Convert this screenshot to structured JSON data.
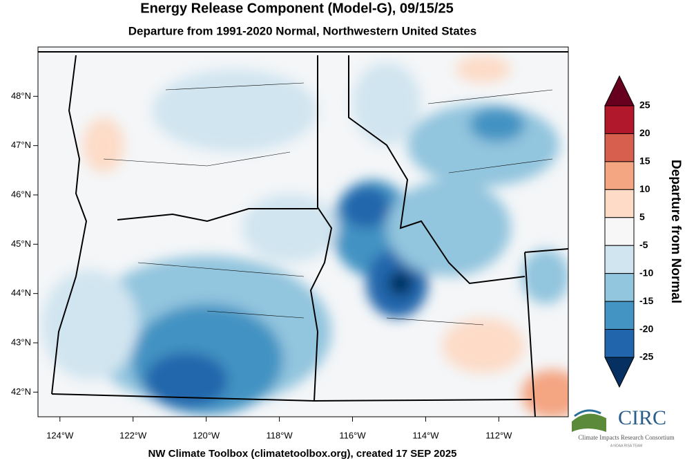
{
  "title": "Energy Release Component (Model-G), 09/15/25",
  "subtitle": "Departure from 1991-2020 Normal, Northwestern United States",
  "footer": "NW Climate Toolbox (climatetoolbox.org), created 17 SEP 2025",
  "map": {
    "xlim": [
      -124.6,
      -110.1
    ],
    "ylim": [
      41.5,
      49.0
    ],
    "xticks": [
      {
        "value": -124,
        "label": "124°W"
      },
      {
        "value": -122,
        "label": "122°W"
      },
      {
        "value": -120,
        "label": "120°W"
      },
      {
        "value": -118,
        "label": "118°W"
      },
      {
        "value": -116,
        "label": "116°W"
      },
      {
        "value": -114,
        "label": "114°W"
      },
      {
        "value": -112,
        "label": "112°W"
      }
    ],
    "yticks": [
      {
        "value": 42,
        "label": "42°N"
      },
      {
        "value": 43,
        "label": "43°N"
      },
      {
        "value": 44,
        "label": "44°N"
      },
      {
        "value": 45,
        "label": "45°N"
      },
      {
        "value": 46,
        "label": "46°N"
      },
      {
        "value": 47,
        "label": "47°N"
      },
      {
        "value": 48,
        "label": "48°N"
      }
    ]
  },
  "colorbar": {
    "title": "Departure from Normal",
    "ticks": [
      25,
      20,
      15,
      10,
      5,
      -5,
      -10,
      -15,
      -20,
      -25
    ],
    "colors": [
      "#67001f",
      "#b2182b",
      "#d6604d",
      "#f4a582",
      "#fddbc7",
      "#f7f7f7",
      "#d1e5f0",
      "#92c5de",
      "#4393c3",
      "#2166ac",
      "#053061"
    ]
  },
  "logo": {
    "name": "CIRC",
    "full_name": "Climate Impacts Research Consortium",
    "tagline": "A NOAA RISA TEAM"
  }
}
